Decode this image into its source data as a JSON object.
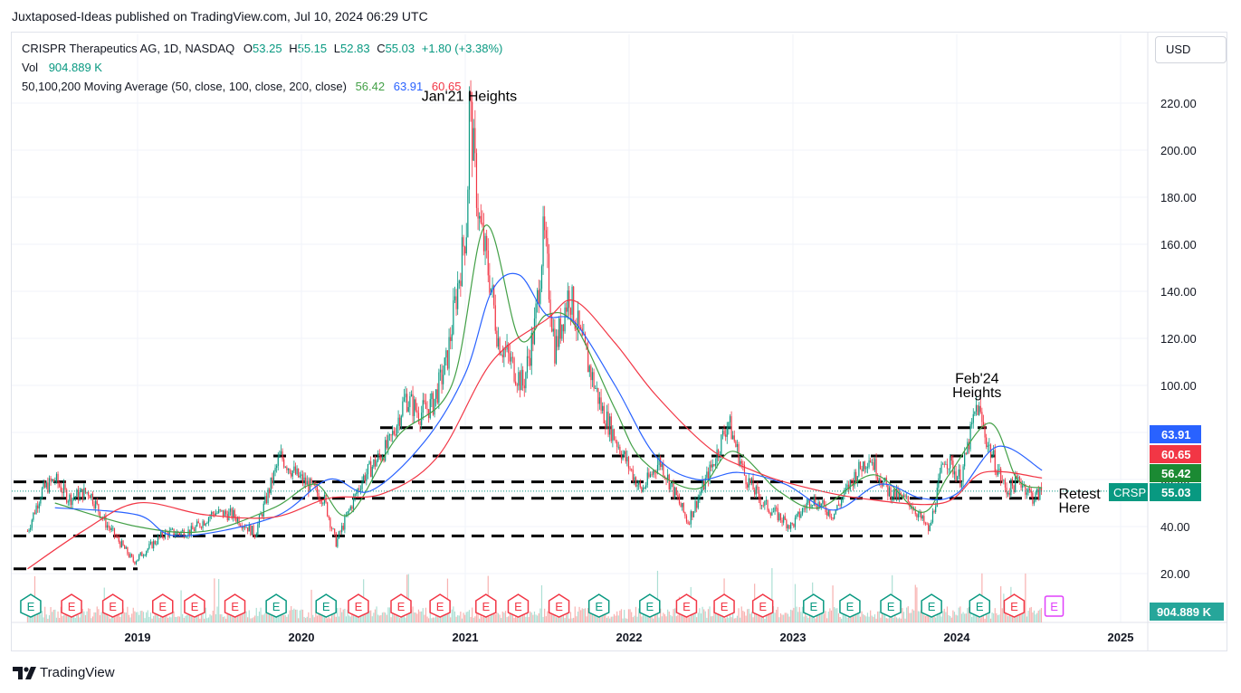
{
  "header": {
    "published_line": "Juxtaposed-Ideas published on TradingView.com, Jul 10, 2024 06:29 UTC"
  },
  "legend": {
    "symbol": "CRISPR Therapeutics AG, 1D, NASDAQ",
    "open_label": "O",
    "open": "53.25",
    "high_label": "H",
    "high": "55.15",
    "low_label": "L",
    "low": "52.83",
    "close_label": "C",
    "close": "55.03",
    "change": "+1.80 (+3.38%)",
    "vol_label": "Vol",
    "vol_value": "904.889 K",
    "ma_label": "50,100,200 Moving Average (50, close, 100, close, 200, close)",
    "ma50_value": "56.42",
    "ma100_value": "63.91",
    "ma200_value": "60.65"
  },
  "currency_button": "USD",
  "footer": {
    "brand": "TradingView"
  },
  "colors": {
    "up": "#089981",
    "down": "#f23645",
    "ma50": "#43a047",
    "ma100": "#2962ff",
    "ma200": "#f23645",
    "earnings": "#089981",
    "earnings_negative": "#f23645",
    "earnings_upcoming": "#e040fb"
  },
  "chart_data": {
    "type": "line",
    "series_type": "candlestick",
    "symbol": "CRSP",
    "title": "CRISPR Therapeutics AG, 1D, NASDAQ",
    "x_axis": {
      "ticks": [
        "2019",
        "2020",
        "2021",
        "2022",
        "2023",
        "2024",
        "2025"
      ]
    },
    "y_axis": {
      "ticks": [
        "220.00",
        "200.00",
        "180.00",
        "160.00",
        "140.00",
        "120.00",
        "100.00",
        "80.00",
        "60.00",
        "40.00",
        "20.00"
      ],
      "ylim": [
        0,
        234
      ]
    },
    "grid": true,
    "price_path": [
      [
        "2018-05-01",
        38
      ],
      [
        "2018-06-01",
        55
      ],
      [
        "2018-07-01",
        60
      ],
      [
        "2018-08-01",
        52
      ],
      [
        "2018-09-15",
        55
      ],
      [
        "2018-10-20",
        42
      ],
      [
        "2018-12-24",
        25
      ],
      [
        "2019-01-20",
        30
      ],
      [
        "2019-03-01",
        37
      ],
      [
        "2019-05-01",
        38
      ],
      [
        "2019-06-20",
        46
      ],
      [
        "2019-08-01",
        45
      ],
      [
        "2019-09-20",
        37
      ],
      [
        "2019-11-15",
        70
      ],
      [
        "2019-12-20",
        62
      ],
      [
        "2020-02-20",
        52
      ],
      [
        "2020-03-18",
        33
      ],
      [
        "2020-05-15",
        60
      ],
      [
        "2020-07-15",
        75
      ],
      [
        "2020-08-20",
        95
      ],
      [
        "2020-09-20",
        88
      ],
      [
        "2020-10-20",
        92
      ],
      [
        "2020-11-20",
        110
      ],
      [
        "2020-12-20",
        150
      ],
      [
        "2021-01-05",
        170
      ],
      [
        "2021-01-10",
        220
      ],
      [
        "2021-02-01",
        170
      ],
      [
        "2021-02-25",
        145
      ],
      [
        "2021-03-15",
        120
      ],
      [
        "2021-05-10",
        100
      ],
      [
        "2021-06-05",
        125
      ],
      [
        "2021-06-25",
        165
      ],
      [
        "2021-07-20",
        115
      ],
      [
        "2021-08-20",
        140
      ],
      [
        "2021-09-15",
        120
      ],
      [
        "2021-11-01",
        90
      ],
      [
        "2021-12-15",
        72
      ],
      [
        "2022-01-28",
        55
      ],
      [
        "2022-03-10",
        68
      ],
      [
        "2022-05-12",
        42
      ],
      [
        "2022-07-10",
        68
      ],
      [
        "2022-08-10",
        85
      ],
      [
        "2022-09-15",
        62
      ],
      [
        "2022-10-25",
        50
      ],
      [
        "2022-12-29",
        40
      ],
      [
        "2023-02-10",
        52
      ],
      [
        "2023-04-01",
        45
      ],
      [
        "2023-05-20",
        62
      ],
      [
        "2023-06-20",
        70
      ],
      [
        "2023-08-01",
        55
      ],
      [
        "2023-09-20",
        50
      ],
      [
        "2023-11-01",
        38
      ],
      [
        "2023-12-05",
        70
      ],
      [
        "2024-01-10",
        60
      ],
      [
        "2024-02-15",
        92
      ],
      [
        "2024-03-10",
        75
      ],
      [
        "2024-04-20",
        55
      ],
      [
        "2024-05-20",
        60
      ],
      [
        "2024-06-20",
        52
      ],
      [
        "2024-07-09",
        55.03
      ]
    ],
    "moving_averages": [
      {
        "name": "MA 50",
        "last": 56.42,
        "color": "#43a047",
        "points": [
          [
            "2018-07-01",
            50
          ],
          [
            "2018-12-31",
            40
          ],
          [
            "2019-06-01",
            38
          ],
          [
            "2019-11-01",
            48
          ],
          [
            "2020-02-01",
            58
          ],
          [
            "2020-04-15",
            45
          ],
          [
            "2020-08-01",
            78
          ],
          [
            "2020-12-01",
            100
          ],
          [
            "2021-02-15",
            168
          ],
          [
            "2021-05-01",
            120
          ],
          [
            "2021-07-01",
            130
          ],
          [
            "2021-09-01",
            126
          ],
          [
            "2021-12-01",
            90
          ],
          [
            "2022-02-01",
            68
          ],
          [
            "2022-06-01",
            56
          ],
          [
            "2022-08-20",
            72
          ],
          [
            "2022-12-01",
            55
          ],
          [
            "2023-03-01",
            48
          ],
          [
            "2023-07-01",
            62
          ],
          [
            "2023-10-15",
            46
          ],
          [
            "2023-12-15",
            62
          ],
          [
            "2024-03-15",
            84
          ],
          [
            "2024-05-15",
            60
          ],
          [
            "2024-07-09",
            56.42
          ]
        ]
      },
      {
        "name": "MA 100",
        "last": 63.91,
        "color": "#2962ff",
        "points": [
          [
            "2018-07-01",
            48
          ],
          [
            "2018-12-31",
            45
          ],
          [
            "2019-04-01",
            36
          ],
          [
            "2019-11-01",
            44
          ],
          [
            "2020-03-01",
            60
          ],
          [
            "2020-06-01",
            55
          ],
          [
            "2020-10-01",
            76
          ],
          [
            "2021-01-01",
            105
          ],
          [
            "2021-03-01",
            140
          ],
          [
            "2021-05-01",
            147
          ],
          [
            "2021-07-01",
            130
          ],
          [
            "2021-09-01",
            127
          ],
          [
            "2021-12-01",
            100
          ],
          [
            "2022-03-01",
            70
          ],
          [
            "2022-06-01",
            60
          ],
          [
            "2022-09-01",
            63
          ],
          [
            "2022-12-15",
            58
          ],
          [
            "2023-04-01",
            47
          ],
          [
            "2023-07-15",
            58
          ],
          [
            "2023-10-15",
            52
          ],
          [
            "2024-01-01",
            54
          ],
          [
            "2024-04-01",
            74
          ],
          [
            "2024-07-09",
            63.91
          ]
        ]
      },
      {
        "name": "MA 200",
        "last": 60.65,
        "color": "#f23645",
        "points": [
          [
            "2018-05-01",
            22
          ],
          [
            "2018-09-01",
            38
          ],
          [
            "2019-01-01",
            50
          ],
          [
            "2019-06-01",
            45
          ],
          [
            "2019-11-01",
            44
          ],
          [
            "2020-03-01",
            52
          ],
          [
            "2020-07-01",
            54
          ],
          [
            "2020-11-01",
            70
          ],
          [
            "2021-03-01",
            110
          ],
          [
            "2021-07-01",
            128
          ],
          [
            "2021-09-01",
            136
          ],
          [
            "2021-12-01",
            118
          ],
          [
            "2022-03-01",
            96
          ],
          [
            "2022-07-01",
            73
          ],
          [
            "2022-10-01",
            64
          ],
          [
            "2023-01-01",
            58
          ],
          [
            "2023-06-01",
            52
          ],
          [
            "2023-12-01",
            50
          ],
          [
            "2024-03-01",
            63
          ],
          [
            "2024-07-09",
            60.65
          ]
        ]
      }
    ],
    "horizontal_levels": [
      22,
      36,
      52,
      59,
      70,
      82
    ],
    "annotations": [
      {
        "label": "Jan'21 Heights",
        "date": "2021-01-10",
        "price": 221
      },
      {
        "label": "Feb'24",
        "date": "2024-02-15",
        "price": 101
      },
      {
        "label": "Heights",
        "date": "2024-02-15",
        "price": 95
      },
      {
        "label": "Retest",
        "date": "2024-08-15",
        "price": 52
      },
      {
        "label": "Here",
        "date": "2024-08-15",
        "price": 46
      }
    ],
    "price_tags": [
      {
        "label": "63.91",
        "price": 63.91,
        "color": "#2962ff"
      },
      {
        "label": "60.65",
        "price": 60.65,
        "color": "#f23645"
      },
      {
        "label": "56.42",
        "price": 56.42,
        "color": "#1b8a33"
      },
      {
        "label": "55.03",
        "price": 55.03,
        "color": "#089981",
        "symbol": "CRSP"
      }
    ],
    "volume_tag": "904.889 K",
    "earnings": [
      {
        "date": "2018-05-08",
        "beat": true
      },
      {
        "date": "2018-08-07",
        "beat": false
      },
      {
        "date": "2018-11-07",
        "beat": false
      },
      {
        "date": "2019-02-26",
        "beat": false
      },
      {
        "date": "2019-05-08",
        "beat": false
      },
      {
        "date": "2019-08-06",
        "beat": false
      },
      {
        "date": "2019-11-06",
        "beat": true
      },
      {
        "date": "2020-02-25",
        "beat": true
      },
      {
        "date": "2020-05-07",
        "beat": false
      },
      {
        "date": "2020-08-10",
        "beat": false
      },
      {
        "date": "2020-11-05",
        "beat": false
      },
      {
        "date": "2021-02-16",
        "beat": false
      },
      {
        "date": "2021-04-29",
        "beat": false
      },
      {
        "date": "2021-07-29",
        "beat": false
      },
      {
        "date": "2021-10-26",
        "beat": true
      },
      {
        "date": "2022-02-16",
        "beat": true
      },
      {
        "date": "2022-05-09",
        "beat": false
      },
      {
        "date": "2022-08-01",
        "beat": false
      },
      {
        "date": "2022-10-26",
        "beat": false
      },
      {
        "date": "2023-02-16",
        "beat": true
      },
      {
        "date": "2023-05-08",
        "beat": true
      },
      {
        "date": "2023-08-07",
        "beat": true
      },
      {
        "date": "2023-11-06",
        "beat": true
      },
      {
        "date": "2024-02-21",
        "beat": true
      },
      {
        "date": "2024-05-08",
        "beat": false
      },
      {
        "date": "2024-08-05",
        "beat": false
      }
    ],
    "earnings_label": "E"
  }
}
